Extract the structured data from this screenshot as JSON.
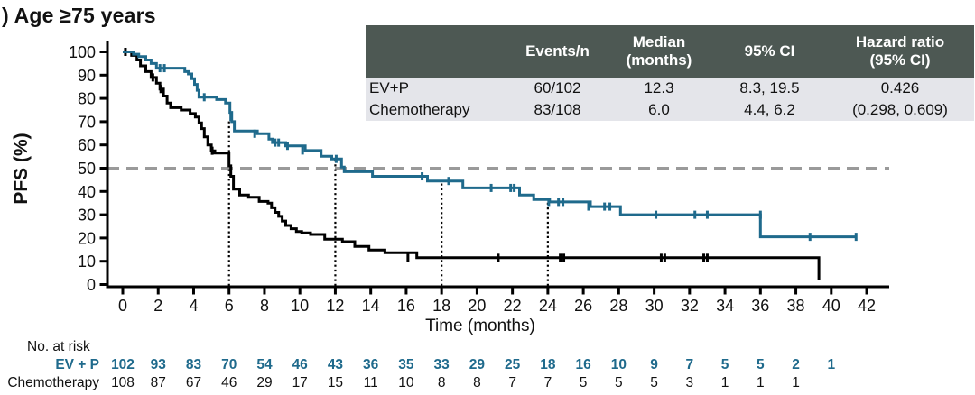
{
  "title": ") Age ≥75 years",
  "stats_table": {
    "headers": [
      "",
      "Events/n",
      "Median\n(months)",
      "95% CI",
      "Hazard ratio\n(95% CI)"
    ],
    "rows": [
      {
        "label": "EV+P",
        "events_n": "60/102",
        "median": "12.3",
        "ci": "8.3, 19.5",
        "hr": "0.426"
      },
      {
        "label": "Chemotherapy",
        "events_n": "83/108",
        "median": "6.0",
        "ci": "4.4, 6.2",
        "hr": "(0.298, 0.609)"
      }
    ]
  },
  "chart_data": {
    "type": "line",
    "subtype": "kaplan-meier-step",
    "title": ") Age ≥75 years",
    "xlabel": "Time (months)",
    "ylabel": "PFS (%)",
    "xlim": [
      0,
      42
    ],
    "ylim": [
      0,
      100
    ],
    "xticks": [
      0,
      2,
      4,
      6,
      8,
      10,
      12,
      14,
      16,
      18,
      20,
      22,
      24,
      26,
      28,
      30,
      32,
      34,
      36,
      38,
      40,
      42
    ],
    "yticks": [
      0,
      10,
      20,
      30,
      40,
      50,
      60,
      70,
      80,
      90,
      100
    ],
    "grid": "off",
    "reference_lines": {
      "horizontal_dashed": {
        "y": 50,
        "color": "#9a9a9a"
      },
      "vertical_dotted": [
        [
          6,
          70.5
        ],
        [
          12,
          54
        ],
        [
          18,
          44.5
        ],
        [
          24,
          35.5
        ]
      ]
    },
    "series": [
      {
        "name": "Chemotherapy",
        "color": "#000000",
        "end_month": 39.3,
        "steps": [
          [
            0,
            100
          ],
          [
            0.5,
            98.5
          ],
          [
            0.8,
            96.5
          ],
          [
            1,
            94
          ],
          [
            1.3,
            91.5
          ],
          [
            1.6,
            89
          ],
          [
            1.9,
            86.5
          ],
          [
            2.1,
            84
          ],
          [
            2.3,
            81
          ],
          [
            2.5,
            78
          ],
          [
            2.7,
            76
          ],
          [
            3.3,
            75
          ],
          [
            3.8,
            73.5
          ],
          [
            4.1,
            72
          ],
          [
            4.3,
            69.5
          ],
          [
            4.45,
            67
          ],
          [
            4.6,
            63.5
          ],
          [
            4.8,
            60
          ],
          [
            5,
            57.5
          ],
          [
            5.2,
            56.5
          ],
          [
            6,
            51
          ],
          [
            6.1,
            46.5
          ],
          [
            6.25,
            41
          ],
          [
            6.6,
            38.5
          ],
          [
            7.1,
            37.5
          ],
          [
            7.7,
            35.7
          ],
          [
            8.2,
            35
          ],
          [
            8.4,
            33
          ],
          [
            8.6,
            31
          ],
          [
            8.8,
            29.3
          ],
          [
            9,
            27.3
          ],
          [
            9.2,
            25.4
          ],
          [
            9.5,
            24
          ],
          [
            9.8,
            22.8
          ],
          [
            10.1,
            22.2
          ],
          [
            10.6,
            21.5
          ],
          [
            11.4,
            19.5
          ],
          [
            12.4,
            18.4
          ],
          [
            13.1,
            16.4
          ],
          [
            13.9,
            14.8
          ],
          [
            14.8,
            13.7
          ],
          [
            16.6,
            11.5
          ],
          [
            39.3,
            2
          ]
        ],
        "censors": [
          [
            0.15,
            100
          ],
          [
            1.7,
            89
          ],
          [
            2.15,
            84
          ],
          [
            5.05,
            57.5
          ],
          [
            16.1,
            11.5
          ],
          [
            21.2,
            11.5
          ],
          [
            24.7,
            11.5
          ],
          [
            24.9,
            11.5
          ],
          [
            30.4,
            11.5
          ],
          [
            30.6,
            11.5
          ],
          [
            32.8,
            11.5
          ],
          [
            33,
            11.5
          ]
        ]
      },
      {
        "name": "EV+P",
        "color": "#1f6a8c",
        "end_month": 41.4,
        "steps": [
          [
            0,
            100
          ],
          [
            0.6,
            99
          ],
          [
            0.9,
            98
          ],
          [
            1.3,
            96.5
          ],
          [
            1.6,
            95
          ],
          [
            1.9,
            93
          ],
          [
            3.5,
            91.5
          ],
          [
            3.7,
            90.5
          ],
          [
            3.9,
            88.5
          ],
          [
            4.05,
            86
          ],
          [
            4.2,
            83.5
          ],
          [
            4.3,
            80.5
          ],
          [
            5.3,
            79.5
          ],
          [
            5.8,
            78
          ],
          [
            6.05,
            74
          ],
          [
            6.15,
            70
          ],
          [
            6.3,
            66
          ],
          [
            7.6,
            64.8
          ],
          [
            8.25,
            62.5
          ],
          [
            8.45,
            61
          ],
          [
            9.2,
            59.6
          ],
          [
            10.3,
            57.6
          ],
          [
            11.2,
            55.1
          ],
          [
            11.8,
            54
          ],
          [
            12.35,
            50.5
          ],
          [
            12.5,
            48.5
          ],
          [
            14.1,
            46.5
          ],
          [
            17.2,
            44.5
          ],
          [
            19.2,
            41.5
          ],
          [
            22.4,
            38.5
          ],
          [
            23.2,
            36.5
          ],
          [
            24.1,
            35.5
          ],
          [
            26.4,
            33.5
          ],
          [
            28.1,
            30
          ],
          [
            36,
            20.5
          ]
        ],
        "censors": [
          [
            2.1,
            93
          ],
          [
            2.35,
            93
          ],
          [
            4.6,
            80.5
          ],
          [
            6.1,
            72
          ],
          [
            7.45,
            64.8
          ],
          [
            8.6,
            61
          ],
          [
            8.8,
            61
          ],
          [
            9.3,
            59.6
          ],
          [
            10.15,
            57.6
          ],
          [
            12.05,
            54
          ],
          [
            16.9,
            46.5
          ],
          [
            18.4,
            44.5
          ],
          [
            20.8,
            41.5
          ],
          [
            21.9,
            41.5
          ],
          [
            22.1,
            41.5
          ],
          [
            24.05,
            35.5
          ],
          [
            24.6,
            35.5
          ],
          [
            24.85,
            35.5
          ],
          [
            26.3,
            33.5
          ],
          [
            27.2,
            33.5
          ],
          [
            27.5,
            33.5
          ],
          [
            30.1,
            30
          ],
          [
            32.3,
            30
          ],
          [
            33,
            30
          ],
          [
            36,
            30
          ],
          [
            38.8,
            20.5
          ],
          [
            41.4,
            20.5
          ]
        ]
      }
    ]
  },
  "risk_table": {
    "heading": "No. at risk",
    "rows": [
      {
        "label": "EV + P",
        "color": "#1f6a8c",
        "bold": true,
        "values": [
          "102",
          "93",
          "83",
          "70",
          "54",
          "46",
          "43",
          "36",
          "35",
          "33",
          "29",
          "25",
          "18",
          "16",
          "10",
          "9",
          "7",
          "5",
          "5",
          "2",
          "1"
        ]
      },
      {
        "label": "Chemotherapy",
        "color": "#111111",
        "bold": false,
        "values": [
          "108",
          "87",
          "67",
          "46",
          "29",
          "17",
          "15",
          "11",
          "10",
          "8",
          "8",
          "7",
          "7",
          "5",
          "5",
          "5",
          "3",
          "1",
          "1",
          "1"
        ]
      }
    ]
  }
}
